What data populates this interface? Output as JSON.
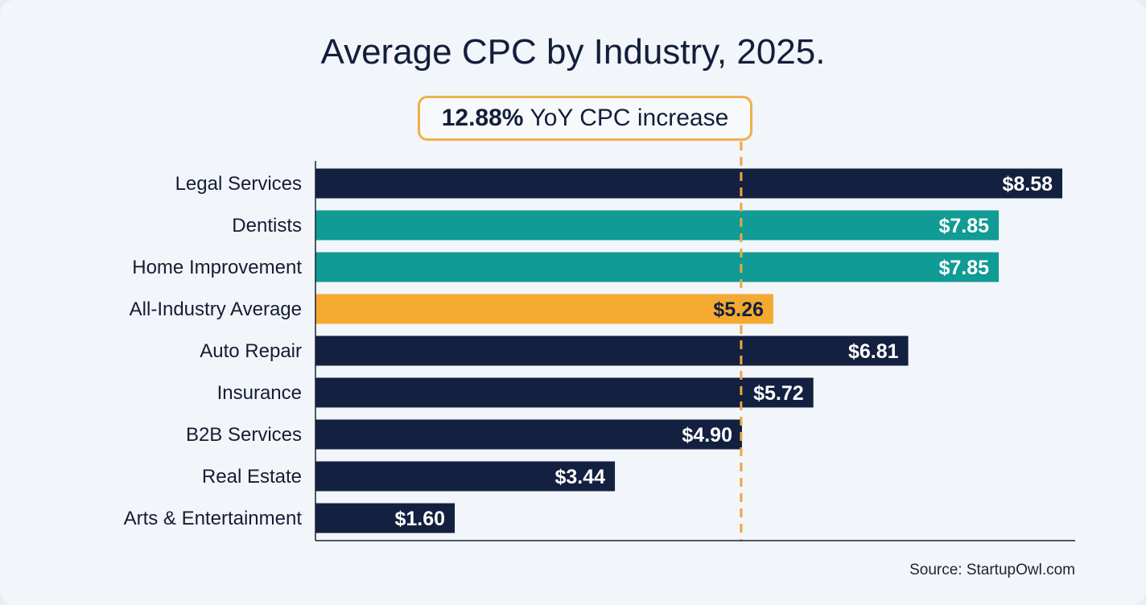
{
  "chart_data": {
    "type": "bar",
    "orientation": "horizontal",
    "title": "Average CPC by Industry, 2025.",
    "callout": {
      "value": "12.88%",
      "text": "YoY CPC increase"
    },
    "source": "Source: StartupOwl.com",
    "xlabel": "",
    "ylabel": "",
    "xlim": [
      0,
      8.7
    ],
    "grid": false,
    "categories": [
      "Legal Services",
      "Dentists",
      "Home Improvement",
      "All-Industry Average",
      "Auto Repair",
      "Insurance",
      "B2B Services",
      "Real Estate",
      "Arts & Entertainment"
    ],
    "values": [
      8.58,
      7.85,
      7.85,
      5.26,
      6.81,
      5.72,
      4.9,
      3.44,
      1.6
    ],
    "value_labels": [
      "$8.58",
      "$7.85",
      "$7.85",
      "$5.26",
      "$6.81",
      "$5.72",
      "$4.90",
      "$3.44",
      "$1.60"
    ],
    "bar_colors": [
      "#13203f",
      "#109b95",
      "#109b95",
      "#f4a930",
      "#13203f",
      "#13203f",
      "#13203f",
      "#13203f",
      "#13203f"
    ],
    "colors": {
      "navy": "#13203f",
      "teal": "#109b95",
      "orange": "#f4a930",
      "reference_line": "#e9a73e"
    }
  }
}
